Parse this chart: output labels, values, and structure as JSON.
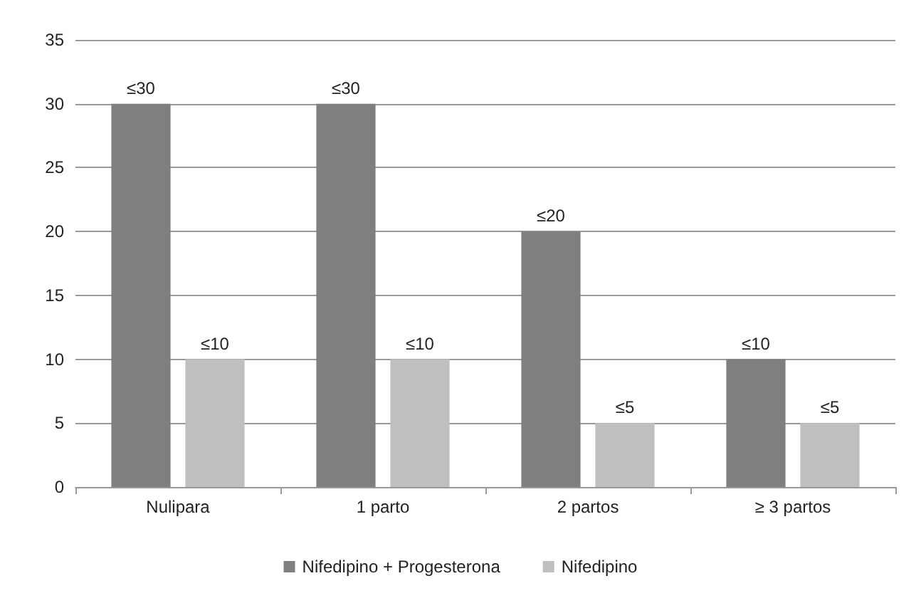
{
  "chart_data": {
    "type": "bar",
    "categories": [
      "Nulipara",
      "1 parto",
      "2 partos",
      "≥ 3 partos"
    ],
    "series": [
      {
        "name": "Nifedipino + Progesterona",
        "color": "#7f7f7f",
        "values": [
          30,
          30,
          20,
          10
        ],
        "value_labels": [
          "≤30",
          "≤30",
          "≤20",
          "≤10"
        ]
      },
      {
        "name": "Nifedipino",
        "color": "#bfbfbf",
        "values": [
          10,
          10,
          5,
          5
        ],
        "value_labels": [
          "≤10",
          "≤10",
          "≤5",
          "≤5"
        ]
      }
    ],
    "ylim": [
      0,
      35
    ],
    "yticks": [
      0,
      5,
      10,
      15,
      20,
      25,
      30,
      35
    ],
    "grid": "y",
    "legend": "bottom"
  }
}
